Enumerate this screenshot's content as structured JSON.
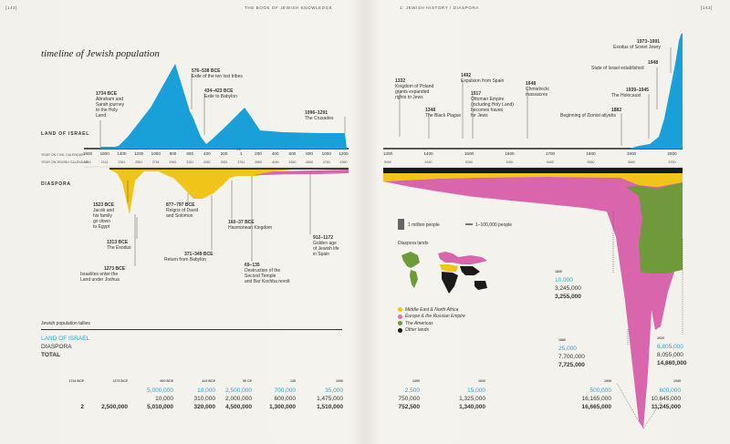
{
  "header": {
    "page_left": "[142]",
    "book_title": "THE BOOK OF JEWISH KNOWLEDGE",
    "section": "1: JEWISH HISTORY  /  DIASPORA",
    "page_right": "[143]"
  },
  "title": "timeline of Jewish population",
  "sections": {
    "land_of_israel": "LAND OF ISRAEL",
    "diaspora": "DIASPORA",
    "axis_civil": "YEAR ON CIVIL CALENDAR",
    "axis_jewish": "YEAR ON JEWISH CALENDAR",
    "ce_marker": "CE"
  },
  "axis_left": {
    "civil": [
      "1800",
      "1600",
      "1400",
      "1200",
      "1000",
      "800",
      "600",
      "400",
      "200",
      "1",
      "200",
      "400",
      "600",
      "800",
      "1000",
      "1200"
    ],
    "jewish": [
      "1961",
      "2161",
      "2361",
      "2561",
      "2761",
      "2961",
      "3161",
      "3361",
      "3561",
      "3761",
      "3960",
      "4160",
      "4360",
      "4560",
      "4760",
      "4960"
    ]
  },
  "axis_right": {
    "civil": [
      "1300",
      "1400",
      "1500",
      "1600",
      "1700",
      "1800",
      "1900",
      "2000"
    ],
    "jewish": [
      "5060",
      "5160",
      "5260",
      "5360",
      "5460",
      "5560",
      "5660",
      "5760"
    ]
  },
  "events_israel": [
    {
      "date": "1734 BCE",
      "text": "Abraham and\nSarah journey\nto the Holy\nLand"
    },
    {
      "date": "576–538 BCE",
      "text": "Exile of the ten lost tribes"
    },
    {
      "date": "434–423 BCE",
      "text": "Exile to Babylon"
    },
    {
      "date": "1096–1291",
      "text": "The Crusades"
    },
    {
      "date": "1332",
      "text": "Kingdom of Poland\ngrants expanded\nrights to Jews"
    },
    {
      "date": "1348",
      "text": "The Black Plague"
    },
    {
      "date": "1492",
      "text": "Expulsion from Spain"
    },
    {
      "date": "1517",
      "text": "Ottoman Empire\n(including Holy Land)\nbecomes haven\nfor Jews"
    },
    {
      "date": "1648",
      "text": "Chmielnicki\nmassacres"
    },
    {
      "date": "1882",
      "text": "Beginning of Zionist aliyahs"
    },
    {
      "date": "1939–1945",
      "text": "The Holocaust"
    },
    {
      "date": "1948",
      "text": "State of Israel established"
    },
    {
      "date": "1973–1991",
      "text": "Exodus of Soviet Jewry"
    }
  ],
  "events_diaspora": [
    {
      "date": "1523 BCE",
      "text": "Jacob and\nhis family\ngo down\nto Egypt"
    },
    {
      "date": "1313 BCE",
      "text": "The Exodus"
    },
    {
      "date": "1273 BCE",
      "text": "Israelites enter the\nLand under Joshua"
    },
    {
      "date": "877–797 BCE",
      "text": "Reigns of David\nand Solomon"
    },
    {
      "date": "371–349 BCE",
      "text": "Return from Babylon"
    },
    {
      "date": "160–37 BCE",
      "text": "Hasmonean Kingdom"
    },
    {
      "date": "69–135",
      "text": "Destruction of the\nSecond Temple\nand Bar Kochba revolt"
    },
    {
      "date": "912–1172",
      "text": "Golden age\nof Jewish life\nin Spain"
    }
  ],
  "legend": {
    "million": "1 million people",
    "small": "1–100,000 people",
    "lands_title": "Diaspora lands",
    "lands": [
      {
        "label": "Middle East & North Africa",
        "color": "#f0c419"
      },
      {
        "label": "Europe & the Russian Empire",
        "color": "#e06db3"
      },
      {
        "label": "The Americas",
        "color": "#6f9a3a"
      },
      {
        "label": "Other lands",
        "color": "#1a1a1a"
      }
    ]
  },
  "tallies": {
    "heading": "Jewish population tallies",
    "land": "LAND OF ISRAEL",
    "diaspora": "DIASPORA",
    "total": "TOTAL",
    "columns": [
      {
        "year": "1734 BCE",
        "land": "",
        "diaspora": "",
        "total": "2"
      },
      {
        "year": "1273 BCE",
        "land": "",
        "diaspora": "",
        "total": "2,500,000"
      },
      {
        "year": "900 BCE",
        "land": "5,000,000",
        "diaspora": "10,000",
        "total": "5,010,000"
      },
      {
        "year": "423 BCE",
        "land": "10,000",
        "diaspora": "310,000",
        "total": "320,000"
      },
      {
        "year": "50 CE",
        "land": "2,500,000",
        "diaspora": "2,000,000",
        "total": "4,500,000"
      },
      {
        "year": "135",
        "land": "700,000",
        "diaspora": "600,000",
        "total": "1,300,000"
      },
      {
        "year": "1090",
        "land": "35,000",
        "diaspora": "1,475,000",
        "total": "1,510,000"
      },
      {
        "year": "1300",
        "land": "2,500",
        "diaspora": "750,000",
        "total": "752,500"
      },
      {
        "year": "1600",
        "land": "15,000",
        "diaspora": "1,325,000",
        "total": "1,340,000"
      },
      {
        "year": "1939",
        "land": "500,000",
        "diaspora": "16,165,000",
        "total": "16,665,000"
      },
      {
        "year": "1945",
        "land": "600,000",
        "diaspora": "10,645,000",
        "total": "11,245,000"
      }
    ],
    "callouts": [
      {
        "year": "1830",
        "land": "10,000",
        "diaspora": "3,245,000",
        "total": "3,255,000"
      },
      {
        "year": "1880",
        "land": "25,000",
        "diaspora": "7,700,000",
        "total": "7,725,000"
      },
      {
        "year": "2020",
        "land": "6,805,000",
        "diaspora": "8,055,000",
        "total": "14,860,000"
      }
    ]
  },
  "colors": {
    "israel": "#1aa0d8",
    "mena": "#f0c419",
    "europe": "#d966ad",
    "americas": "#6f9a3a",
    "other": "#1a1a1a"
  }
}
